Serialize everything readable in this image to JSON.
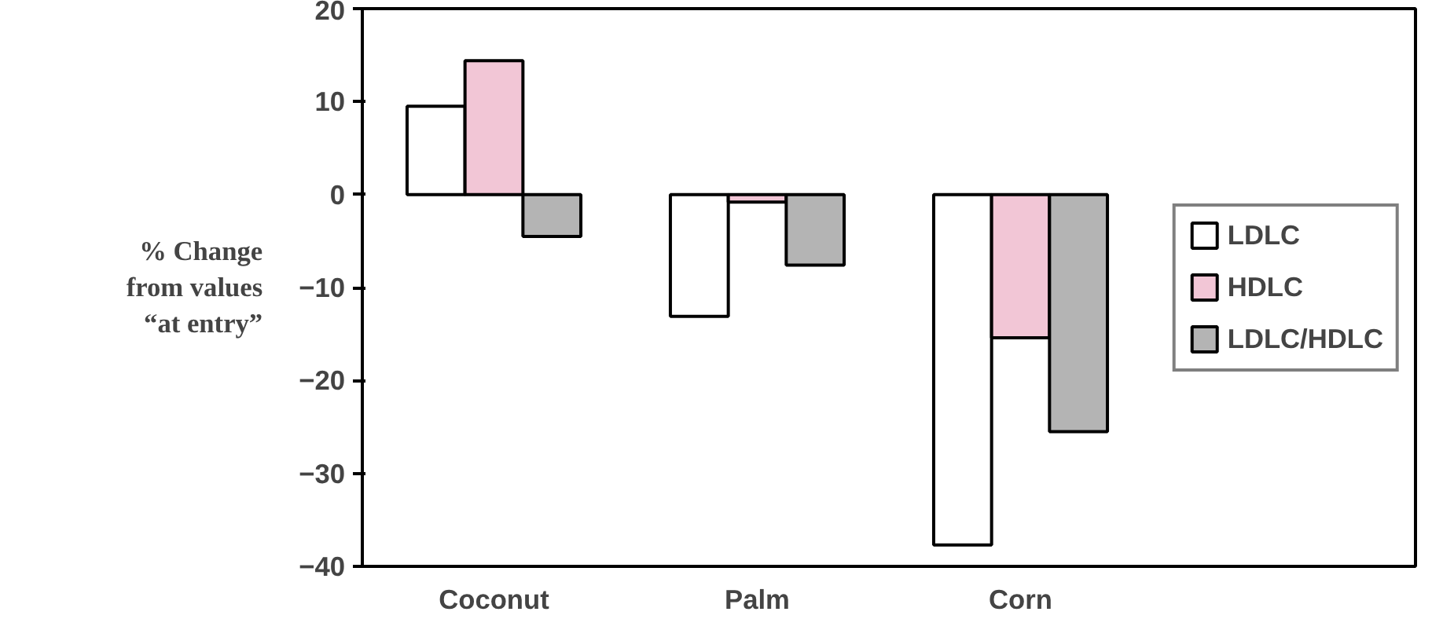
{
  "chart_data": {
    "type": "bar",
    "ylabel": "% Change\nfrom values\n“at entry”",
    "categories": [
      "Coconut",
      "Palm",
      "Corn",
      null
    ],
    "series": [
      {
        "name": "LDLC",
        "color": "#ffffff",
        "values": [
          9.5,
          -13.1,
          -37.7,
          null
        ]
      },
      {
        "name": "HDLC",
        "color": "#f2c6d6",
        "values": [
          14.4,
          -0.8,
          -15.4,
          null
        ]
      },
      {
        "name": "LDLC/HDLC",
        "color": "#b4b4b4",
        "values": [
          -4.5,
          -7.6,
          -25.5,
          null
        ]
      }
    ],
    "ylim": [
      -40,
      20
    ],
    "yticks": [
      -40,
      -30,
      -20,
      -10,
      0,
      10,
      20
    ],
    "grid": false,
    "legend": "right"
  }
}
